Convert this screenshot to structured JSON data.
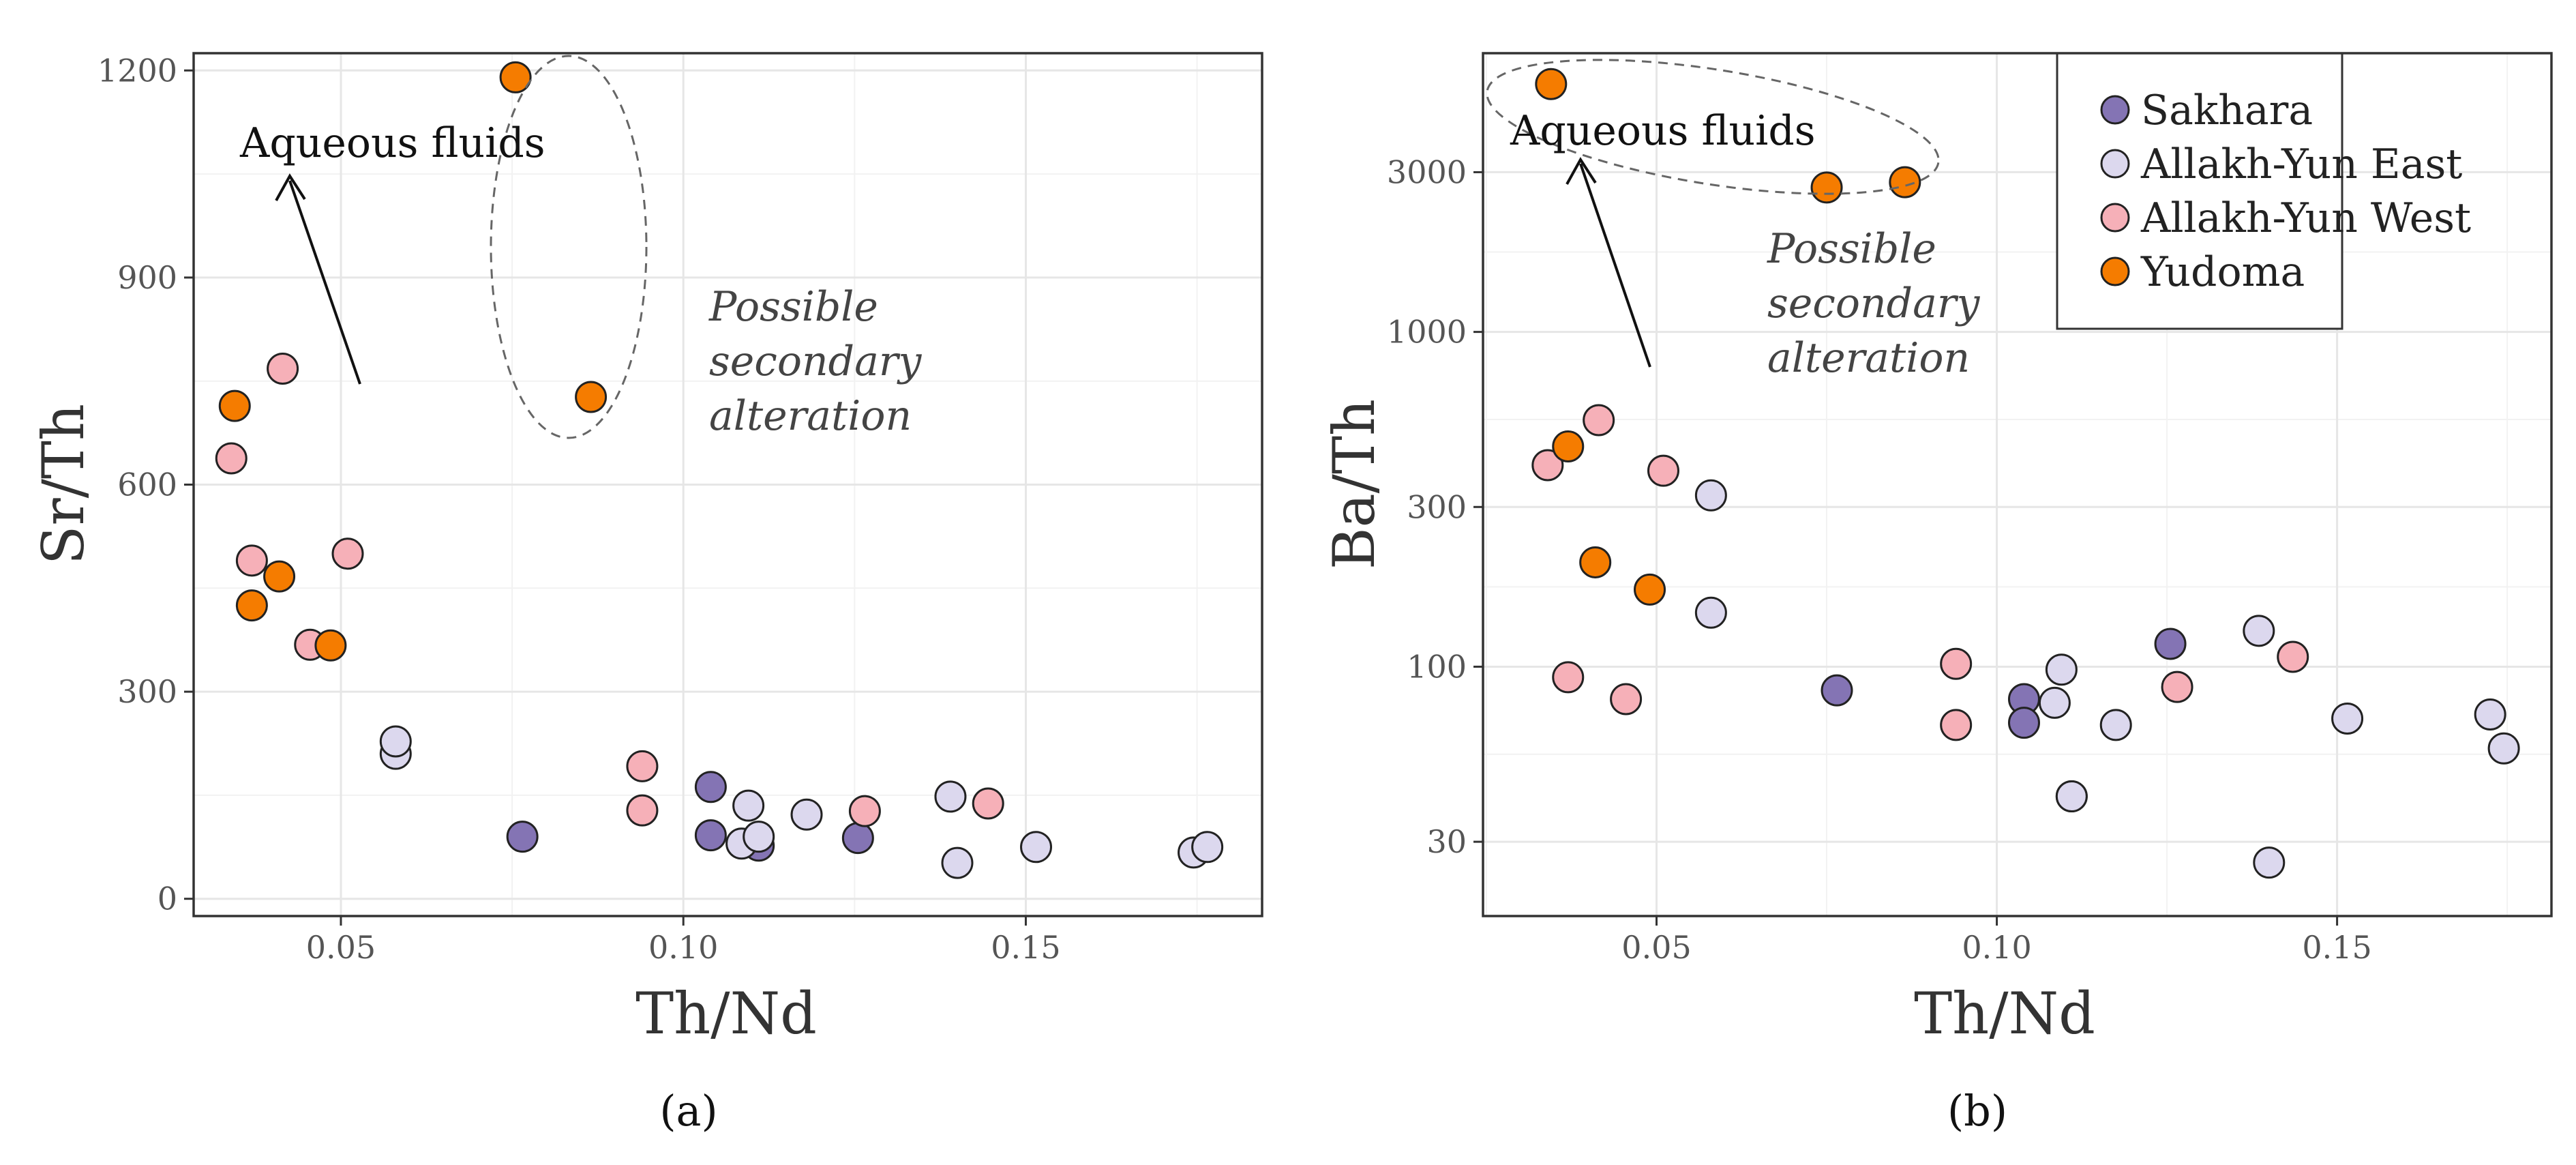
{
  "colors": {
    "Sakhara": "#8474b4",
    "Allakh-Yun East": "#dcd8ee",
    "Allakh-Yun West": "#f6b0b8",
    "Yudoma": "#f57c00"
  },
  "legend": {
    "entries": [
      "Sakhara",
      "Allakh-Yun East",
      "Allakh-Yun West",
      "Yudoma"
    ]
  },
  "chart_data": [
    {
      "type": "scatter",
      "panel_label": "(a)",
      "xlabel": "Th/Nd",
      "ylabel": "Sr/Th",
      "xlim": [
        0.0285,
        0.1845
      ],
      "ylim": [
        -25,
        1225
      ],
      "x_ticks": [
        0.05,
        0.1,
        0.15
      ],
      "x_tick_labels": [
        "0.05",
        "0.10",
        "0.15"
      ],
      "y_ticks": [
        0,
        300,
        600,
        900,
        1200
      ],
      "y_tick_labels": [
        "0",
        "300",
        "600",
        "900",
        "1200"
      ],
      "y_scale": "linear",
      "annotations": {
        "aqueous_fluids": "Aqueous fluids",
        "possible_line1": "Possible",
        "possible_line2": "secondary",
        "possible_line3": "alteration"
      },
      "series": [
        {
          "name": "Sakhara",
          "points": [
            [
              0.0765,
              90
            ],
            [
              0.104,
              92
            ],
            [
              0.104,
              162
            ],
            [
              0.111,
              77
            ],
            [
              0.1255,
              88
            ]
          ]
        },
        {
          "name": "Allakh-Yun East",
          "points": [
            [
              0.058,
              210
            ],
            [
              0.058,
              228
            ],
            [
              0.1085,
              80
            ],
            [
              0.1095,
              135
            ],
            [
              0.111,
              90
            ],
            [
              0.118,
              122
            ],
            [
              0.139,
              148
            ],
            [
              0.14,
              52
            ],
            [
              0.1515,
              75
            ],
            [
              0.1745,
              67
            ],
            [
              0.1765,
              75
            ]
          ]
        },
        {
          "name": "Allakh-Yun West",
          "points": [
            [
              0.034,
              638
            ],
            [
              0.037,
              490
            ],
            [
              0.0415,
              768
            ],
            [
              0.0455,
              368
            ],
            [
              0.051,
              500
            ],
            [
              0.094,
              192
            ],
            [
              0.094,
              128
            ],
            [
              0.1265,
              127
            ],
            [
              0.1445,
              138
            ]
          ]
        },
        {
          "name": "Yudoma",
          "points": [
            [
              0.0345,
              714
            ],
            [
              0.037,
              425
            ],
            [
              0.041,
              467
            ],
            [
              0.0485,
              367
            ],
            [
              0.0755,
              1190
            ],
            [
              0.0865,
              727
            ]
          ]
        }
      ]
    },
    {
      "type": "scatter",
      "panel_label": "(b)",
      "xlabel": "Th/Nd",
      "ylabel": "Ba/Th",
      "xlim": [
        0.0245,
        0.1815
      ],
      "ylim": [
        18,
        6800
      ],
      "x_ticks": [
        0.05,
        0.1,
        0.15
      ],
      "x_tick_labels": [
        "0.05",
        "0.10",
        "0.15"
      ],
      "y_ticks": [
        30,
        100,
        300,
        1000,
        3000
      ],
      "y_tick_labels": [
        "30",
        "100",
        "300",
        "1000",
        "3000"
      ],
      "y_scale": "log",
      "legend_position": "top-right",
      "annotations": {
        "aqueous_fluids": "Aqueous fluids",
        "possible_line1": "Possible",
        "possible_line2": "secondary",
        "possible_line3": "alteration"
      },
      "series": [
        {
          "name": "Sakhara",
          "points": [
            [
              0.0765,
              85
            ],
            [
              0.104,
              80
            ],
            [
              0.104,
              68
            ],
            [
              0.1255,
              117
            ],
            [
              0.111,
              41
            ]
          ]
        },
        {
          "name": "Allakh-Yun East",
          "points": [
            [
              0.058,
              325
            ],
            [
              0.058,
              145
            ],
            [
              0.1085,
              78
            ],
            [
              0.1095,
              98
            ],
            [
              0.111,
              41
            ],
            [
              0.1175,
              67
            ],
            [
              0.1385,
              128
            ],
            [
              0.14,
              26
            ],
            [
              0.1515,
              70
            ],
            [
              0.1725,
              72
            ],
            [
              0.1745,
              57
            ]
          ]
        },
        {
          "name": "Allakh-Yun West",
          "points": [
            [
              0.034,
              400
            ],
            [
              0.037,
              93
            ],
            [
              0.0415,
              545
            ],
            [
              0.0455,
              80
            ],
            [
              0.051,
              385
            ],
            [
              0.094,
              102
            ],
            [
              0.094,
              67
            ],
            [
              0.1265,
              87
            ],
            [
              0.1435,
              107
            ]
          ]
        },
        {
          "name": "Yudoma",
          "points": [
            [
              0.0345,
              5500
            ],
            [
              0.037,
              455
            ],
            [
              0.041,
              205
            ],
            [
              0.049,
              170
            ],
            [
              0.075,
              2700
            ],
            [
              0.0865,
              2800
            ]
          ]
        }
      ]
    }
  ]
}
